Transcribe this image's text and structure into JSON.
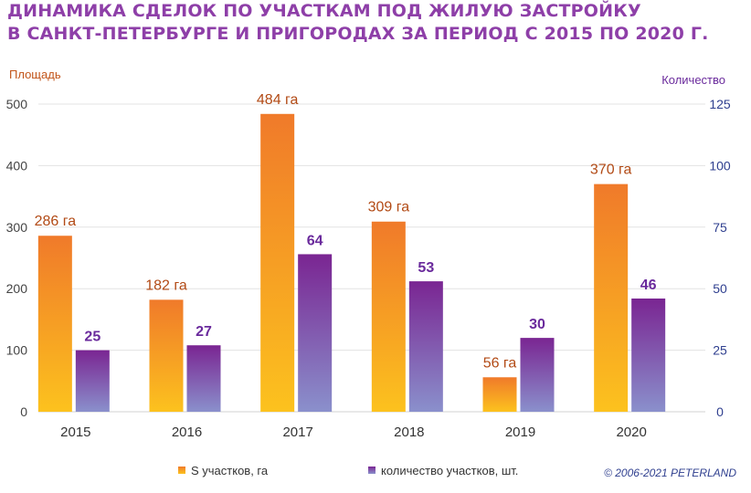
{
  "title_lines": [
    "ДИНАМИКА СДЕЛОК ПО УЧАСТКАМ ПОД ЖИЛУЮ ЗАСТРОЙКУ",
    "В САНКТ-ПЕТЕРБУРГЕ И ПРИГОРОДАХ ЗА ПЕРИОД С 2015 ПО 2020 Г."
  ],
  "copyright": "© 2006-2021  PETERLAND",
  "chart_data": {
    "type": "bar",
    "categories": [
      "2015",
      "2016",
      "2017",
      "2018",
      "2019",
      "2020"
    ],
    "left_axis": {
      "title": "Площадь",
      "ylim": [
        0,
        500
      ],
      "ticks": [
        "0",
        "100",
        "200",
        "300",
        "400",
        "500"
      ]
    },
    "right_axis": {
      "title": "Количество",
      "ylim": [
        0,
        125
      ],
      "ticks": [
        "0",
        "25",
        "50",
        "75",
        "100",
        "125"
      ]
    },
    "series": [
      {
        "name": "S участков, га",
        "axis": "left",
        "values": [
          286,
          182,
          484,
          309,
          56,
          370
        ],
        "labels": [
          "286 га",
          "182 га",
          "484 га",
          "309 га",
          "56 га",
          "370 га"
        ],
        "color_top": "#f07a2a",
        "color_bottom": "#fcc21e"
      },
      {
        "name": "количество участков, шт.",
        "axis": "right",
        "values": [
          25,
          27,
          64,
          53,
          30,
          46
        ],
        "labels": [
          "25",
          "27",
          "64",
          "53",
          "30",
          "46"
        ],
        "color_top": "#7a2592",
        "color_bottom": "#8a90cc"
      }
    ],
    "grid": true,
    "legend": "bottom"
  }
}
